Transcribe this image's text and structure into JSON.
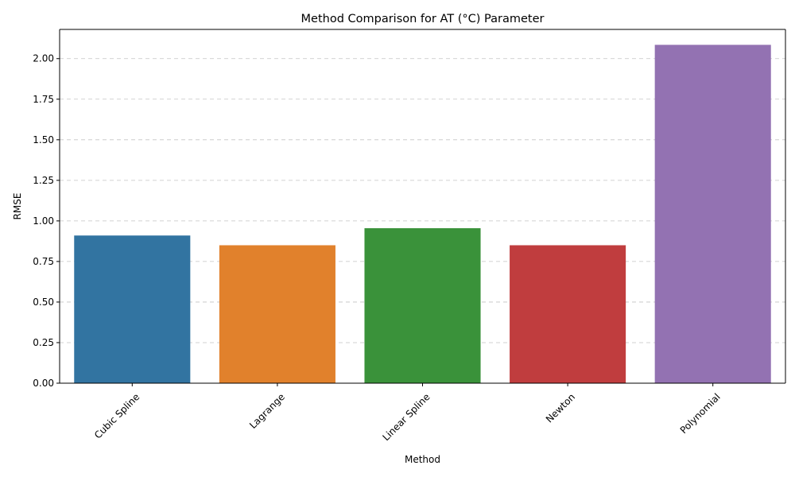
{
  "chart_data": {
    "type": "bar",
    "title": "Method Comparison for AT (°C) Parameter",
    "xlabel": "Method",
    "ylabel": "RMSE",
    "categories": [
      "Cubic Spline",
      "Lagrange",
      "Linear Spline",
      "Newton",
      "Polynomial"
    ],
    "values": [
      0.91,
      0.85,
      0.955,
      0.85,
      2.085
    ],
    "colors": [
      "#3274a1",
      "#e1812c",
      "#3a923a",
      "#c03d3e",
      "#9372b2"
    ],
    "ylim": [
      0,
      2.18
    ],
    "yticks": [
      "0.00",
      "0.25",
      "0.50",
      "0.75",
      "1.00",
      "1.25",
      "1.50",
      "1.75",
      "2.00"
    ],
    "grid": "y-dashed",
    "xtick_rotation": 45
  }
}
